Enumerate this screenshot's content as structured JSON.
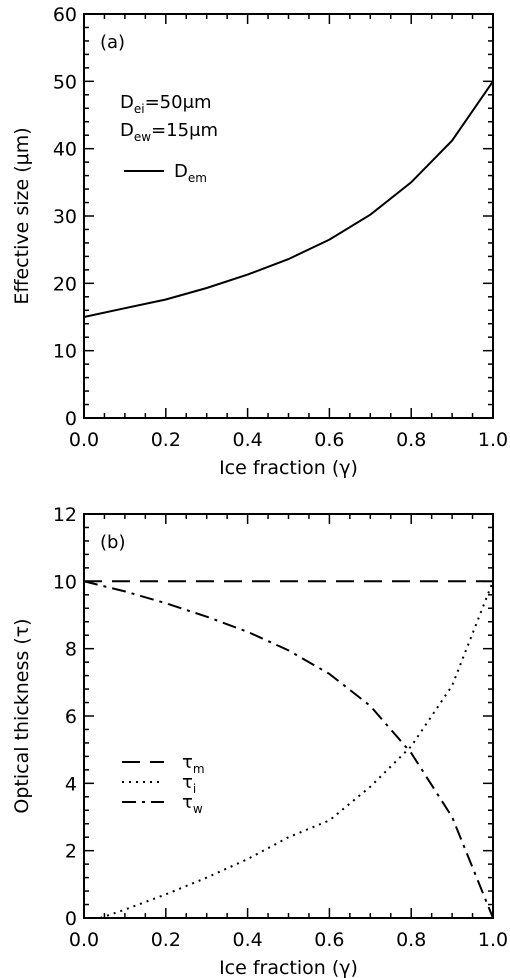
{
  "chart_data": [
    {
      "type": "line",
      "panel_label": "(a)",
      "xlabel": "Ice fraction (γ)",
      "ylabel": "Effective size (μm)",
      "xlim": [
        0,
        1
      ],
      "ylim": [
        0,
        60
      ],
      "xticks": [
        0.0,
        0.2,
        0.4,
        0.6,
        0.8,
        1.0
      ],
      "xtick_labels": [
        "0.0",
        "0.2",
        "0.4",
        "0.6",
        "0.8",
        "1.0"
      ],
      "yticks": [
        0,
        10,
        20,
        30,
        40,
        50,
        60
      ],
      "ytick_labels": [
        "0",
        "10",
        "20",
        "30",
        "40",
        "50",
        "60"
      ],
      "annotations": [
        {
          "main": "D",
          "sub": "ei",
          "rest": "=50μm"
        },
        {
          "main": "D",
          "sub": "ew",
          "rest": "=15μm"
        }
      ],
      "legend_position": "upper-left",
      "series": [
        {
          "name_main": "D",
          "name_sub": "em",
          "style": "solid",
          "x": [
            0.0,
            0.1,
            0.2,
            0.3,
            0.4,
            0.5,
            0.6,
            0.7,
            0.8,
            0.9,
            1.0
          ],
          "y": [
            15.0,
            16.3,
            17.6,
            19.3,
            21.3,
            23.6,
            26.5,
            30.2,
            35.0,
            41.2,
            50.0
          ]
        }
      ]
    },
    {
      "type": "line",
      "panel_label": "(b)",
      "xlabel": "Ice fraction (γ)",
      "ylabel": "Optical thickness (τ)",
      "xlim": [
        0,
        1
      ],
      "ylim": [
        0,
        12
      ],
      "xticks": [
        0.0,
        0.2,
        0.4,
        0.6,
        0.8,
        1.0
      ],
      "xtick_labels": [
        "0.0",
        "0.2",
        "0.4",
        "0.6",
        "0.8",
        "1.0"
      ],
      "yticks": [
        0,
        2,
        4,
        6,
        8,
        10,
        12
      ],
      "ytick_labels": [
        "0",
        "2",
        "4",
        "6",
        "8",
        "10",
        "12"
      ],
      "legend_position": "middle-left",
      "series": [
        {
          "name_main": "τ",
          "name_sub": "m",
          "style": "dashed",
          "x": [
            0.0,
            1.0
          ],
          "y": [
            10.0,
            10.0
          ]
        },
        {
          "name_main": "τ",
          "name_sub": "i",
          "style": "dotted",
          "x": [
            0.04,
            0.1,
            0.2,
            0.3,
            0.4,
            0.5,
            0.6,
            0.7,
            0.8,
            0.9,
            1.0
          ],
          "y": [
            0.0,
            0.25,
            0.7,
            1.2,
            1.75,
            2.4,
            2.9,
            3.9,
            5.1,
            6.9,
            10.0
          ]
        },
        {
          "name_main": "τ",
          "name_sub": "w",
          "style": "dashdot",
          "x": [
            0.0,
            0.1,
            0.2,
            0.3,
            0.4,
            0.5,
            0.6,
            0.7,
            0.8,
            0.9,
            1.0
          ],
          "y": [
            10.0,
            9.7,
            9.35,
            8.95,
            8.5,
            7.95,
            7.25,
            6.3,
            4.9,
            3.0,
            0.0
          ]
        }
      ]
    }
  ]
}
